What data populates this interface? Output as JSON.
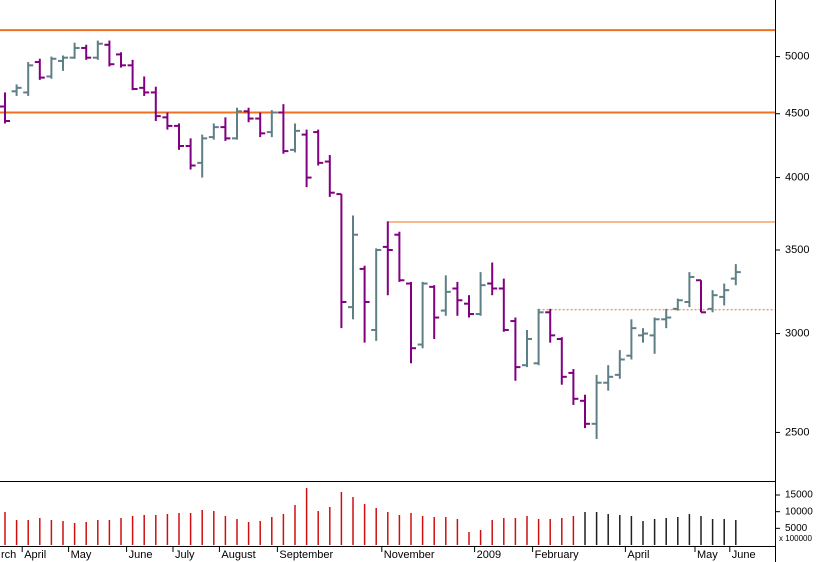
{
  "chart_data": {
    "type": "ohlc",
    "categories": [
      "rch",
      null,
      "April",
      null,
      null,
      null,
      "May",
      null,
      null,
      null,
      null,
      "June",
      null,
      null,
      null,
      "July",
      null,
      null,
      null,
      "August",
      null,
      null,
      null,
      null,
      "September",
      null,
      null,
      null,
      null,
      null,
      null,
      null,
      null,
      "November",
      null,
      null,
      null,
      null,
      null,
      null,
      null,
      "2009",
      null,
      null,
      null,
      null,
      "February",
      null,
      null,
      null,
      null,
      null,
      null,
      null,
      "April",
      null,
      null,
      null,
      null,
      null,
      "May",
      null,
      null,
      "June"
    ],
    "open": [
      4560,
      4690,
      4680,
      4950,
      4820,
      4960,
      4990,
      5080,
      4990,
      5110,
      5020,
      4920,
      4720,
      4680,
      4470,
      4400,
      4240,
      4110,
      4310,
      4390,
      4300,
      4520,
      4460,
      4350,
      4510,
      4210,
      4330,
      4350,
      4120,
      3880,
      3150,
      3380,
      3020,
      3520,
      3600,
      3290,
      2940,
      3270,
      3130,
      3260,
      3170,
      3110,
      3290,
      3260,
      3070,
      2830,
      2840,
      3120,
      2970,
      2790,
      2650,
      2540,
      2740,
      2780,
      2880,
      2990,
      2990,
      3080,
      3140,
      3180,
      3310,
      3140,
      3210,
      3320
    ],
    "high": [
      4680,
      4750,
      4950,
      4980,
      5000,
      5010,
      5130,
      5110,
      5150,
      5150,
      5040,
      4970,
      4820,
      4730,
      4510,
      4420,
      4300,
      4330,
      4420,
      4470,
      4550,
      4550,
      4510,
      4530,
      4580,
      4420,
      4370,
      4370,
      4170,
      3880,
      3730,
      3400,
      3510,
      3690,
      3620,
      3300,
      3300,
      3280,
      3340,
      3300,
      3220,
      3360,
      3420,
      3320,
      3090,
      3020,
      3140,
      3140,
      2980,
      2810,
      2680,
      2780,
      2830,
      2910,
      3080,
      3030,
      3090,
      3140,
      3200,
      3360,
      3310,
      3250,
      3290,
      3410
    ],
    "low": [
      4420,
      4650,
      4650,
      4790,
      4800,
      4870,
      4980,
      4970,
      4970,
      4910,
      4900,
      4700,
      4650,
      4440,
      4370,
      4210,
      4060,
      4000,
      4290,
      4280,
      4290,
      4430,
      4310,
      4310,
      4180,
      4190,
      3930,
      4090,
      3860,
      3030,
      3080,
      2950,
      2960,
      3220,
      3300,
      2840,
      2920,
      2970,
      3100,
      3100,
      3090,
      3100,
      3220,
      3010,
      2750,
      2820,
      2830,
      2950,
      2730,
      2630,
      2520,
      2470,
      2700,
      2760,
      2860,
      2950,
      2890,
      3030,
      3130,
      3150,
      3120,
      3120,
      3160,
      3280
    ],
    "close": [
      4440,
      4720,
      4920,
      4810,
      4980,
      4990,
      5080,
      4990,
      5120,
      4930,
      4920,
      4710,
      4680,
      4480,
      4400,
      4240,
      4090,
      4300,
      4390,
      4300,
      4520,
      4460,
      4340,
      4510,
      4200,
      4360,
      4000,
      4110,
      3890,
      3180,
      3600,
      3180,
      3500,
      3500,
      3310,
      2920,
      3290,
      3090,
      3240,
      3190,
      3110,
      3280,
      3260,
      3020,
      2820,
      2970,
      3120,
      2990,
      2770,
      2660,
      2540,
      2740,
      2770,
      2860,
      3030,
      3000,
      3080,
      3090,
      3190,
      3330,
      3120,
      3220,
      3250,
      3360
    ],
    "up_color": "#5f7f86",
    "down_color": "#800080",
    "ylim": [
      2290,
      5550
    ],
    "log_scale": true,
    "yticks": [
      2500,
      3000,
      3500,
      4000,
      4500,
      5000
    ],
    "levels": [
      {
        "value": 5250,
        "color": "#f07020",
        "width": 2,
        "style": "solid",
        "from": 0
      },
      {
        "value": 4510,
        "color": "#f07020",
        "width": 2,
        "style": "solid",
        "from": 0
      },
      {
        "value": 3685,
        "color": "#f07020",
        "width": 1,
        "style": "solid",
        "from": 33
      },
      {
        "value": 3135,
        "color": "#f07020",
        "width": 1,
        "style": "dotted",
        "from": 46
      }
    ],
    "volume": {
      "values": [
        9900,
        7500,
        7500,
        8100,
        7500,
        7200,
        6600,
        6900,
        7500,
        7500,
        8100,
        8700,
        9000,
        9000,
        9300,
        9600,
        9600,
        10500,
        10200,
        8700,
        7800,
        6900,
        7200,
        8400,
        9300,
        12000,
        17100,
        10200,
        11400,
        15900,
        14400,
        12300,
        11100,
        9900,
        9000,
        9600,
        8700,
        8400,
        8400,
        7800,
        3900,
        4500,
        7500,
        8100,
        8100,
        8700,
        7800,
        7800,
        8100,
        8700,
        9900,
        9900,
        9300,
        9000,
        8700,
        7200,
        7800,
        8100,
        8400,
        9300,
        8700,
        7800,
        7800,
        7500
      ],
      "color": "#d01010",
      "color_2009": "#202020",
      "color_from": 50,
      "ylim": [
        0,
        18600
      ],
      "yticks": [
        5000,
        10000,
        15000
      ],
      "unit_label": "x 100000"
    }
  }
}
